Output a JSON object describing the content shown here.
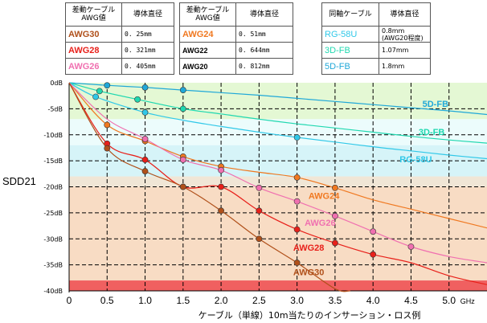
{
  "tables": {
    "awg_left": {
      "headers": [
        "差動ケーブル AWG値",
        "導体直径"
      ],
      "rows": [
        {
          "awg": "AWG30",
          "dia": "0. 25mm",
          "color": "#b0501a"
        },
        {
          "awg": "AWG28",
          "dia": "0. 321mm",
          "color": "#e8201a"
        },
        {
          "awg": "AWG26",
          "dia": "0. 405mm",
          "color": "#f070b0"
        }
      ]
    },
    "awg_mid": {
      "headers": [
        "差動ケーブル AWG値",
        "導体直径"
      ],
      "rows": [
        {
          "awg": "AWG24",
          "dia": "0. 51mm",
          "color": "#f07820"
        },
        {
          "awg": "AWG22",
          "dia": "0. 644mm",
          "color": "#000000"
        },
        {
          "awg": "AWG20",
          "dia": "0. 812mm",
          "color": "#000000"
        }
      ]
    },
    "coax": {
      "headers": [
        "同軸ケーブル",
        "導体直径"
      ],
      "rows": [
        {
          "awg": "RG-58U",
          "dia": "0.8mm (AWG20程度)",
          "color": "#30c8e8"
        },
        {
          "awg": "3D-FB",
          "dia": "1.07mm",
          "color": "#20d8b0"
        },
        {
          "awg": "5D-FB",
          "dia": "1.8mm",
          "color": "#20a8d8"
        }
      ]
    }
  },
  "chart_data": {
    "type": "line",
    "title": "",
    "xlabel": "ケーブル（単線）10m当たりのインサーション・ロス例",
    "ylabel": "SDD21",
    "x_unit": "GHz",
    "xlim": [
      0,
      5.5
    ],
    "ylim": [
      -40,
      0
    ],
    "x_ticks": [
      0,
      0.5,
      1.0,
      1.5,
      2.0,
      2.5,
      3.0,
      3.5,
      4.0,
      4.5,
      5.0
    ],
    "x_tick_labels": [
      "0",
      "0.5",
      "1.0",
      "1.5",
      "2.0",
      "2.5",
      "3.0",
      "3.5",
      "4.0",
      "4.5",
      "5.0"
    ],
    "y_ticks": [
      0,
      -5,
      -10,
      -15,
      -20,
      -25,
      -30,
      -35,
      -40
    ],
    "y_tick_labels": [
      "0dB",
      "-5dB",
      "-10dB",
      "-15dB",
      "-20dB",
      "-25dB",
      "-30dB",
      "-35dB",
      "-40dB"
    ],
    "bands": [
      {
        "from": 0,
        "to": -7,
        "color": "#e4f8d4"
      },
      {
        "from": -7,
        "to": -12,
        "color": "#ecfcfc"
      },
      {
        "from": -12,
        "to": -18,
        "color": "#d6f4f8"
      },
      {
        "from": -18,
        "to": -20,
        "color": "#f0e6d6"
      },
      {
        "from": -20,
        "to": -38,
        "color": "#f8dcc4"
      },
      {
        "from": -38,
        "to": -40,
        "color": "#f06060"
      }
    ],
    "series": [
      {
        "name": "5D-FB",
        "color": "#20a8d8",
        "marker": true,
        "points": [
          [
            0.5,
            -0.5
          ],
          [
            1.0,
            -0.9
          ],
          [
            1.5,
            -1.4
          ]
        ],
        "curve": [
          [
            0,
            0
          ],
          [
            0.5,
            -0.5
          ],
          [
            1,
            -0.9
          ],
          [
            1.5,
            -1.4
          ],
          [
            2,
            -1.9
          ],
          [
            2.5,
            -2.4
          ],
          [
            3,
            -3
          ],
          [
            3.5,
            -3.6
          ],
          [
            4,
            -4.2
          ],
          [
            4.5,
            -4.8
          ],
          [
            5,
            -5.4
          ],
          [
            5.5,
            -6.1
          ]
        ]
      },
      {
        "name": "3D-FB",
        "color": "#20d8b0",
        "marker": true,
        "points": [
          [
            0.4,
            -1.6
          ],
          [
            0.9,
            -3.2
          ],
          [
            1.5,
            -5.0
          ]
        ],
        "curve": [
          [
            0,
            0
          ],
          [
            0.4,
            -1.6
          ],
          [
            0.9,
            -3.2
          ],
          [
            1.5,
            -5.0
          ],
          [
            2,
            -6.0
          ],
          [
            2.5,
            -7.0
          ],
          [
            3,
            -7.9
          ],
          [
            3.5,
            -8.7
          ],
          [
            4,
            -9.5
          ],
          [
            4.5,
            -10.3
          ],
          [
            5,
            -11.0
          ],
          [
            5.5,
            -11.6
          ]
        ]
      },
      {
        "name": "RG-58U",
        "color": "#30c8e8",
        "marker": true,
        "points": [
          [
            0.35,
            -2.7
          ],
          [
            1.0,
            -5.7
          ],
          [
            3.0,
            -10.5
          ]
        ],
        "curve": [
          [
            0,
            0
          ],
          [
            0.35,
            -2.7
          ],
          [
            1,
            -5.7
          ],
          [
            1.5,
            -7.2
          ],
          [
            2,
            -8.4
          ],
          [
            2.5,
            -9.5
          ],
          [
            3,
            -10.5
          ],
          [
            3.5,
            -11.4
          ],
          [
            4,
            -12.3
          ],
          [
            4.5,
            -13.1
          ],
          [
            5,
            -13.9
          ],
          [
            5.5,
            -14.6
          ]
        ]
      },
      {
        "name": "AWG24",
        "color": "#f07820",
        "marker": true,
        "points": [
          [
            0.5,
            -8.1
          ],
          [
            1.0,
            -11.2
          ],
          [
            1.5,
            -14.2
          ],
          [
            2.0,
            -16.1
          ],
          [
            3.0,
            -18.2
          ],
          [
            3.5,
            -20.2
          ]
        ],
        "curve": [
          [
            0,
            0
          ],
          [
            0.5,
            -8.1
          ],
          [
            1,
            -11.2
          ],
          [
            1.5,
            -14.2
          ],
          [
            2,
            -16.1
          ],
          [
            2.5,
            -17.2
          ],
          [
            3,
            -18.2
          ],
          [
            3.5,
            -20.2
          ],
          [
            4,
            -22.5
          ],
          [
            4.5,
            -24.3
          ],
          [
            5,
            -26.1
          ],
          [
            5.5,
            -27.9
          ]
        ]
      },
      {
        "name": "AWG26",
        "color": "#f070b0",
        "marker": true,
        "points": [
          [
            1.0,
            -10.8
          ],
          [
            1.5,
            -14.8
          ],
          [
            2.0,
            -16.8
          ],
          [
            2.5,
            -20.2
          ],
          [
            3.0,
            -22.8
          ],
          [
            3.5,
            -25.6
          ],
          [
            4.0,
            -28.6
          ],
          [
            4.5,
            -31.5
          ]
        ],
        "curve": [
          [
            0,
            0
          ],
          [
            0.5,
            -7
          ],
          [
            1,
            -10.8
          ],
          [
            1.5,
            -14.8
          ],
          [
            2,
            -16.8
          ],
          [
            2.5,
            -20.2
          ],
          [
            3,
            -22.8
          ],
          [
            3.5,
            -25.6
          ],
          [
            4,
            -28.6
          ],
          [
            4.5,
            -31.5
          ],
          [
            5,
            -33.4
          ],
          [
            5.5,
            -34.6
          ]
        ]
      },
      {
        "name": "AWG28",
        "color": "#e8201a",
        "marker": true,
        "points": [
          [
            0.5,
            -11.7
          ],
          [
            1.0,
            -14.8
          ],
          [
            1.5,
            -20.0
          ],
          [
            2.0,
            -20.0
          ],
          [
            2.5,
            -24.6
          ],
          [
            3.0,
            -28.2
          ],
          [
            3.5,
            -30.8
          ],
          [
            4.0,
            -33.0
          ]
        ],
        "curve": [
          [
            0,
            0
          ],
          [
            0.5,
            -11.7
          ],
          [
            1,
            -14.8
          ],
          [
            1.5,
            -20.0
          ],
          [
            2,
            -20.0
          ],
          [
            2.5,
            -24.6
          ],
          [
            3,
            -28.2
          ],
          [
            3.5,
            -30.8
          ],
          [
            4,
            -33.0
          ],
          [
            4.5,
            -34.6
          ],
          [
            5,
            -37.1
          ],
          [
            5.5,
            -38.8
          ]
        ]
      },
      {
        "name": "AWG30",
        "color": "#b0501a",
        "marker": true,
        "points": [
          [
            0.5,
            -12.6
          ],
          [
            1.0,
            -17.0
          ],
          [
            1.5,
            -20.0
          ],
          [
            2.0,
            -24.6
          ],
          [
            2.5,
            -30.0
          ],
          [
            3.0,
            -34.6
          ]
        ],
        "curve": [
          [
            0,
            0
          ],
          [
            0.5,
            -12.6
          ],
          [
            1,
            -17.0
          ],
          [
            1.5,
            -20.0
          ],
          [
            2,
            -24.6
          ],
          [
            2.5,
            -30.0
          ],
          [
            3,
            -34.6
          ],
          [
            3.5,
            -39.6
          ],
          [
            3.7,
            -40
          ]
        ]
      }
    ],
    "annotations": [
      {
        "text": "5D-FB",
        "x": 4.65,
        "y": -4.6,
        "color": "#20a8d8"
      },
      {
        "text": "3D-FB",
        "x": 4.6,
        "y": -10.0,
        "color": "#20d8b0"
      },
      {
        "text": "RG-58U",
        "x": 4.35,
        "y": -15.3,
        "color": "#30c8e8"
      },
      {
        "text": "AWG24",
        "x": 3.15,
        "y": -22.3,
        "color": "#f07820"
      },
      {
        "text": "AWG26",
        "x": 3.1,
        "y": -27.5,
        "color": "#f070b0"
      },
      {
        "text": "AWG28",
        "x": 2.95,
        "y": -32.3,
        "color": "#e8201a"
      },
      {
        "text": "AWG30",
        "x": 2.95,
        "y": -37.0,
        "color": "#b0501a"
      }
    ]
  }
}
